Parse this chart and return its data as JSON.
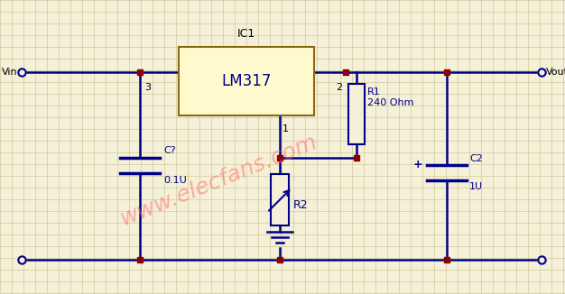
{
  "bg_color": "#f5f0d8",
  "grid_color": "#c8c090",
  "wire_color": "#00008B",
  "dot_color": "#8B0000",
  "component_color": "#00008B",
  "ic_fill": "#fffacd",
  "ic_border": "#8B6914",
  "title": "IC1",
  "ic_label": "LM317",
  "pin1_label": "1",
  "pin2_label": "2",
  "pin3_label": "3",
  "vin_label": "Vin",
  "vout_label": "Vout",
  "r1_label": "R1",
  "r1_value": "240 Ohm",
  "r2_label": "R2",
  "c1_label": "C?",
  "c1_value": "0.1U",
  "c2_label": "C2",
  "c2_value": "1U",
  "watermark": "www.elecfans.com",
  "figw": 6.26,
  "figh": 3.26,
  "dpi": 100
}
